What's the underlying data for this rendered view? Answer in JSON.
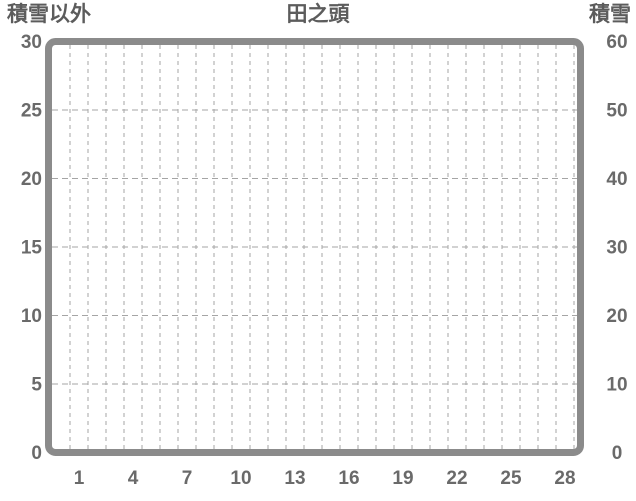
{
  "chart_data": {
    "type": "line",
    "title": "田之頭",
    "x_axis": {
      "kind": "day-of-month",
      "days_start": 1,
      "days_end": 30,
      "tick_labels": [
        "1",
        "4",
        "7",
        "10",
        "13",
        "16",
        "19",
        "22",
        "25",
        "28"
      ],
      "tick_days": [
        1,
        4,
        7,
        10,
        13,
        16,
        19,
        22,
        25,
        28
      ]
    },
    "y_left": {
      "label": "積雪以外",
      "lim": [
        0,
        30
      ],
      "ticks": [
        0,
        5,
        10,
        15,
        20,
        25,
        30
      ],
      "tick_labels": [
        "0",
        "5",
        "10",
        "15",
        "20",
        "25",
        "30"
      ]
    },
    "y_right": {
      "label": "積雪",
      "lim": [
        0,
        60
      ],
      "ticks": [
        0,
        10,
        20,
        30,
        40,
        50,
        60
      ],
      "tick_labels": [
        "0",
        "10",
        "20",
        "30",
        "40",
        "50",
        "60"
      ]
    },
    "grid": {
      "style": "dashed",
      "vertical": "every-day",
      "horizontal": "every-left-tick"
    },
    "legend": "none",
    "series": []
  },
  "colors": {
    "background": "#ffffff",
    "plot_border": "#8b8b8b",
    "gridline": "#a5a5a5",
    "header_text": "#5c5c5c",
    "tick_text": "#6a6a6a"
  }
}
